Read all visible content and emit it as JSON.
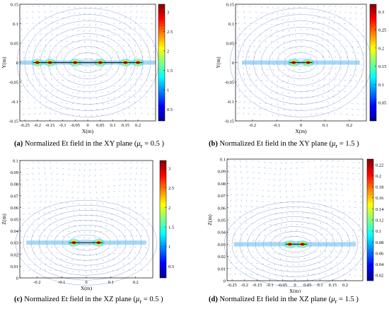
{
  "chart_data": [
    {
      "type": "heatmap",
      "caption": {
        "tag": "(a)",
        "text": "Normalized Et field in the XY plane (",
        "symbol": "μ",
        "sub": "r",
        "tail": " = 0.5 )"
      },
      "xlabel": "X(m)",
      "ylabel": "Y(m)",
      "xlim": [
        -0.27,
        0.27
      ],
      "ylim": [
        -0.15,
        0.15
      ],
      "xticks": [
        "-0.25",
        "-0.2",
        "-0.15",
        "-0.1",
        "-0.05",
        "0",
        "0.05",
        "0.1",
        "0.15",
        "0.2"
      ],
      "xtick_values": [
        -0.25,
        -0.2,
        -0.15,
        -0.1,
        -0.05,
        0,
        0.05,
        0.1,
        0.15,
        0.2
      ],
      "yticks": [
        "0.15",
        "0.1",
        "0.05",
        "0",
        "-0.05",
        "-0.1",
        "-0.15"
      ],
      "ytick_values": [
        0.15,
        0.1,
        0.05,
        0,
        -0.05,
        -0.1,
        -0.15
      ],
      "colorbar": {
        "min": 0.2,
        "max": 3.2,
        "ticks": [
          "3",
          "2.5",
          "2",
          "1.5",
          "1",
          "0.5"
        ],
        "tick_values": [
          3,
          2.5,
          2,
          1.5,
          1,
          0.5
        ]
      },
      "colormap": [
        "#00008f",
        "#0000ff",
        "#0080ff",
        "#00ffff",
        "#80ff80",
        "#ffff00",
        "#ff8000",
        "#ff0000",
        "#800000"
      ],
      "hotspots_x": [
        -0.2,
        -0.15,
        -0.05,
        0.05,
        0.15,
        0.2
      ],
      "hotspots_y": [
        0,
        0,
        0,
        0,
        0,
        0
      ]
    },
    {
      "type": "heatmap",
      "caption": {
        "tag": "(b)",
        "text": "Normalized Et field in the XY plane (",
        "symbol": "μ",
        "sub": "r",
        "tail": " = 1.5 )"
      },
      "xlabel": "X(m)",
      "ylabel": "Y(m)",
      "xlim": [
        -0.27,
        0.27
      ],
      "ylim": [
        -0.15,
        0.15
      ],
      "xticks": [
        "-0.2",
        "-0.1",
        "0",
        "0.1",
        "0.2"
      ],
      "xtick_values": [
        -0.2,
        -0.1,
        0,
        0.1,
        0.2
      ],
      "yticks": [
        "0.15",
        "0.1",
        "0.05",
        "0",
        "-0.05",
        "-0.1",
        "-0.15"
      ],
      "ytick_values": [
        0.15,
        0.1,
        0.05,
        0,
        -0.05,
        -0.1,
        -0.15
      ],
      "colorbar": {
        "min": 0.0,
        "max": 0.32,
        "ticks": [
          "0.3",
          "0.25",
          "0.2",
          "0.15",
          "0.1",
          "0.05"
        ],
        "tick_values": [
          0.3,
          0.25,
          0.2,
          0.15,
          0.1,
          0.05
        ]
      },
      "colormap": [
        "#00008f",
        "#0000ff",
        "#0080ff",
        "#00ffff",
        "#80ff80",
        "#ffff00",
        "#ff8000",
        "#ff0000",
        "#800000"
      ],
      "hotspots_x": [
        -0.03,
        0.03
      ],
      "hotspots_y": [
        0,
        0
      ]
    },
    {
      "type": "heatmap",
      "caption": {
        "tag": "(c)",
        "text": "Normalized Et field in the XZ plane (",
        "symbol": "μ",
        "sub": "r",
        "tail": " = 0.5 )"
      },
      "xlabel": "X(m)",
      "ylabel": "Z(m)",
      "xlim": [
        -0.27,
        0.27
      ],
      "ylim": [
        0,
        0.1
      ],
      "xticks": [
        "-0.2",
        "-0.1",
        "0",
        "0.1",
        "0.2"
      ],
      "xtick_values": [
        -0.2,
        -0.1,
        0,
        0.1,
        0.2
      ],
      "yticks": [
        "0.1",
        "0.09",
        "0.08",
        "0.07",
        "0.06",
        "0.05",
        "0.04",
        "0.03",
        "0.02",
        "0.01",
        "0"
      ],
      "ytick_values": [
        0.1,
        0.09,
        0.08,
        0.07,
        0.06,
        0.05,
        0.04,
        0.03,
        0.02,
        0.01,
        0
      ],
      "colorbar": {
        "min": 0.2,
        "max": 3.2,
        "ticks": [
          "3",
          "2.5",
          "2",
          "1.5",
          "1",
          "0.5"
        ],
        "tick_values": [
          3,
          2.5,
          2,
          1.5,
          1,
          0.5
        ]
      },
      "colormap": [
        "#00008f",
        "#0000ff",
        "#0080ff",
        "#00ffff",
        "#80ff80",
        "#ffff00",
        "#ff8000",
        "#ff0000",
        "#800000"
      ],
      "hotspots_x": [
        -0.05,
        0.05
      ],
      "hotspots_y": [
        0.03,
        0.03
      ]
    },
    {
      "type": "heatmap",
      "caption": {
        "tag": "(d)",
        "text": "Normalized Et field in the XZ plane (",
        "symbol": "μ",
        "sub": "r",
        "tail": " = 1.5 )"
      },
      "xlabel": "X(m)",
      "ylabel": "Z(m)",
      "xlim": [
        -0.27,
        0.27
      ],
      "ylim": [
        0,
        0.1
      ],
      "xticks": [
        "-0.25",
        "-0.2",
        "-0.15",
        "-0.1",
        "-0.05",
        "0",
        "0.05",
        "0.1",
        "0.15",
        "0.2"
      ],
      "xtick_values": [
        -0.25,
        -0.2,
        -0.15,
        -0.1,
        -0.05,
        0,
        0.05,
        0.1,
        0.15,
        0.2
      ],
      "yticks": [
        "0.1",
        "0.09",
        "0.08",
        "0.07",
        "0.06",
        "0.05",
        "0.04",
        "0.03",
        "0.02",
        "0.01",
        "0"
      ],
      "ytick_values": [
        0.1,
        0.09,
        0.08,
        0.07,
        0.06,
        0.05,
        0.04,
        0.03,
        0.02,
        0.01,
        0
      ],
      "colorbar": {
        "min": 0.01,
        "max": 0.23,
        "ticks": [
          "0.22",
          "0.2",
          "0.18",
          "0.16",
          "0.14",
          "0.12",
          "0.1",
          "0.08",
          "0.06",
          "0.04",
          "0.02"
        ],
        "tick_values": [
          0.22,
          0.2,
          0.18,
          0.16,
          0.14,
          0.12,
          0.1,
          0.08,
          0.06,
          0.04,
          0.02
        ]
      },
      "colormap": [
        "#00008f",
        "#0000ff",
        "#0080ff",
        "#00ffff",
        "#80ff80",
        "#ffff00",
        "#ff8000",
        "#ff0000",
        "#800000"
      ],
      "hotspots_x": [
        -0.02,
        0.03
      ],
      "hotspots_y": [
        0.03,
        0.03
      ]
    }
  ]
}
